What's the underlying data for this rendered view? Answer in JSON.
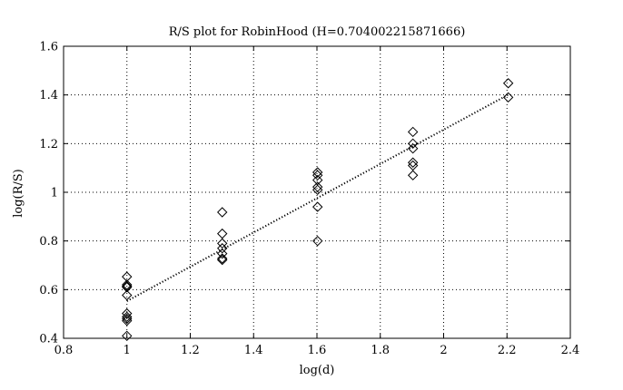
{
  "chart_data": {
    "type": "scatter",
    "title": "R/S plot for RobinHood (H=0.704002215871666)",
    "xlabel": "log(d)",
    "ylabel": "log(R/S)",
    "xlim": [
      0.8,
      2.4
    ],
    "ylim": [
      0.4,
      1.6
    ],
    "x_ticks": [
      "0.8",
      "1",
      "1.2",
      "1.4",
      "1.6",
      "1.8",
      "2",
      "2.2",
      "2.4"
    ],
    "y_ticks": [
      "0.4",
      "0.6",
      "0.8",
      "1",
      "1.2",
      "1.4",
      "1.6"
    ],
    "grid": true,
    "grid_style": "dotted",
    "marker": "diamond",
    "series": [
      {
        "type": "scatter",
        "points": [
          [
            1.0,
            0.653
          ],
          [
            1.0,
            0.62
          ],
          [
            1.0,
            0.614
          ],
          [
            1.0,
            0.61
          ],
          [
            1.0,
            0.577
          ],
          [
            1.0,
            0.502
          ],
          [
            1.0,
            0.488
          ],
          [
            1.0,
            0.48
          ],
          [
            1.0,
            0.472
          ],
          [
            1.0,
            0.41
          ],
          [
            1.301,
            0.918
          ],
          [
            1.301,
            0.83
          ],
          [
            1.301,
            0.79
          ],
          [
            1.301,
            0.77
          ],
          [
            1.301,
            0.748
          ],
          [
            1.301,
            0.728
          ],
          [
            1.301,
            0.722
          ],
          [
            1.602,
            1.082
          ],
          [
            1.602,
            1.07
          ],
          [
            1.602,
            1.05
          ],
          [
            1.602,
            1.022
          ],
          [
            1.602,
            1.01
          ],
          [
            1.602,
            0.94
          ],
          [
            1.602,
            0.8
          ],
          [
            1.903,
            1.248
          ],
          [
            1.903,
            1.2
          ],
          [
            1.903,
            1.18
          ],
          [
            1.903,
            1.122
          ],
          [
            1.903,
            1.11
          ],
          [
            1.903,
            1.07
          ],
          [
            2.204,
            1.448
          ],
          [
            2.204,
            1.39
          ]
        ]
      },
      {
        "type": "line",
        "style": "dotted",
        "x": [
          1.0,
          2.204
        ],
        "y": [
          0.553,
          1.401
        ]
      }
    ]
  }
}
